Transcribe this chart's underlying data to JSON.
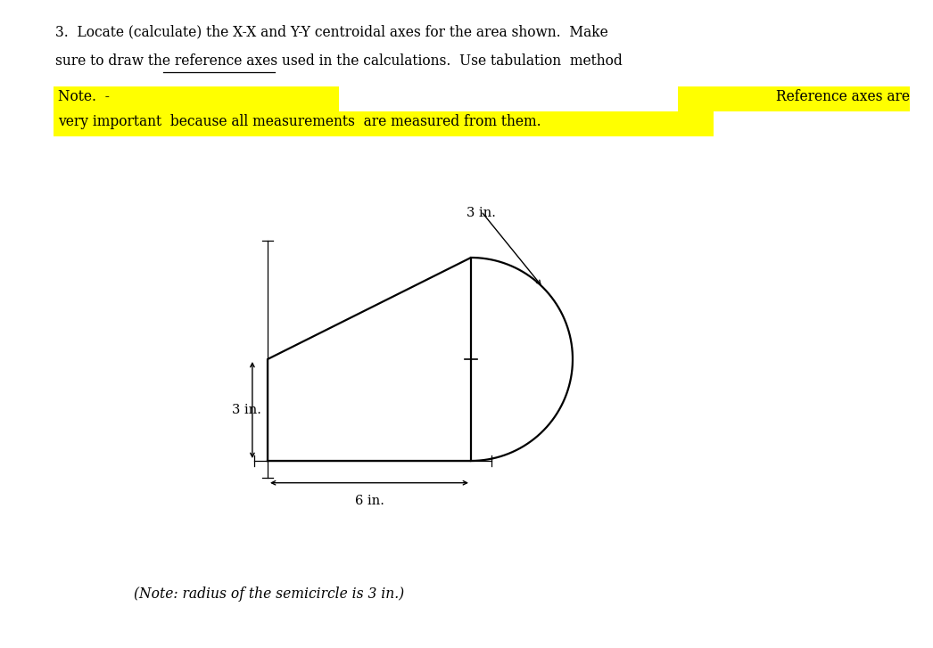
{
  "title_line1": "3.  Locate (calculate) the X-X and Y-Y centroidal axes for the area shown.  Make",
  "title_line2": "sure to draw the reference axes used in the calculations.  Use tabulation  method",
  "note_left": "Note.  -",
  "note_right": "Reference axes are",
  "note_line2": "very important  because all measurements  are measured from them.",
  "bottom_note": "(Note: radius of the semicircle is 3 in.)",
  "dim_3in_label": "3 in.",
  "dim_6in_label": "6 in.",
  "bg_color": "#ffffff",
  "highlight_color": "#ffff00",
  "shape_color": "#000000",
  "fig_width": 10.46,
  "fig_height": 7.27,
  "dpi": 100
}
